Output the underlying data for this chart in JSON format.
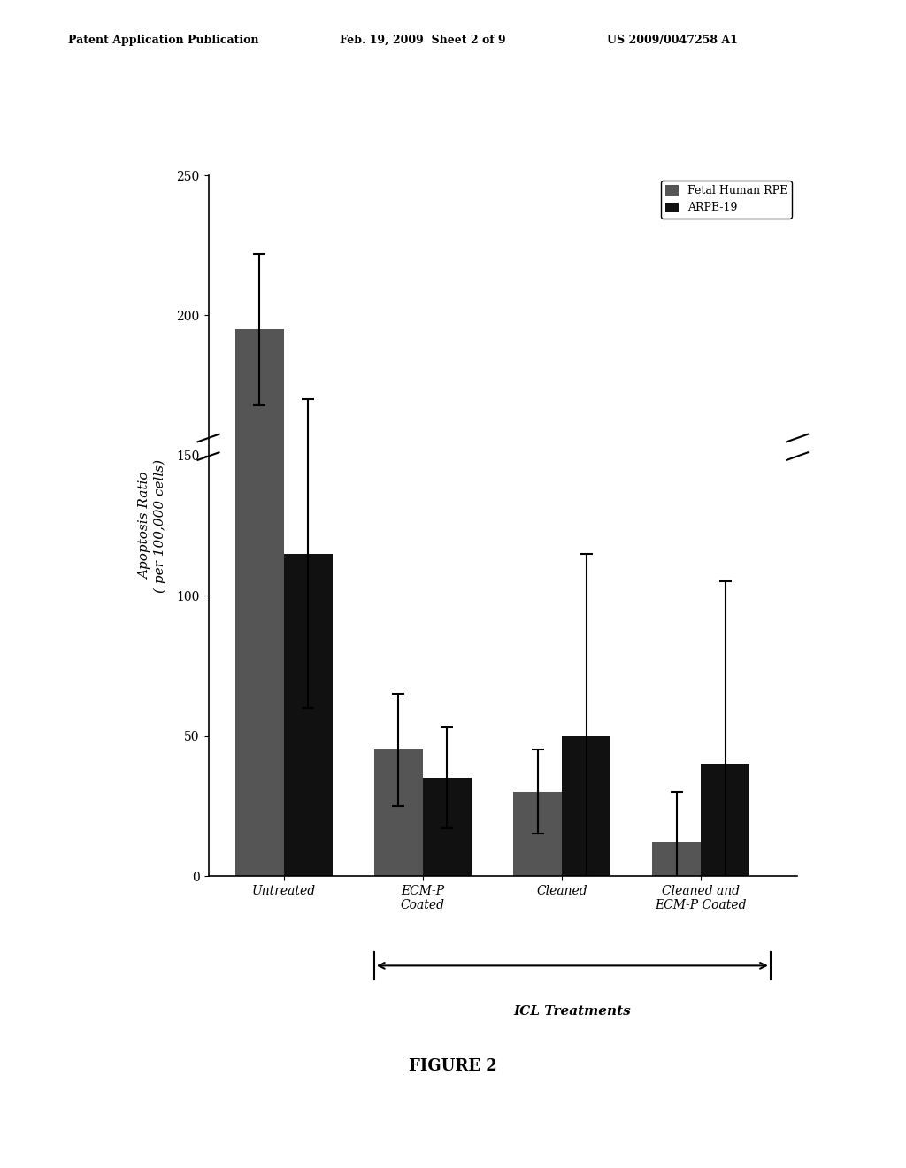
{
  "title": "",
  "ylabel": "Apoptosis Ratio\n( per 100,000 cells)",
  "xlabel": "ICL Treatments",
  "categories": [
    "Untreated",
    "ECM-P\nCoated",
    "Cleaned",
    "Cleaned and\nECM-P Coated"
  ],
  "fetal_values": [
    195,
    45,
    30,
    12
  ],
  "arpe_values": [
    115,
    35,
    50,
    40
  ],
  "fetal_errors": [
    27,
    20,
    15,
    18
  ],
  "arpe_errors": [
    55,
    18,
    65,
    65
  ],
  "ylim": [
    0,
    250
  ],
  "yticks": [
    0,
    50,
    100,
    150,
    200,
    250
  ],
  "bar_width": 0.35,
  "fetal_color": "#555555",
  "arpe_color": "#111111",
  "legend_labels": [
    "Fetal Human RPE",
    "ARPE-19"
  ],
  "header_left": "Patent Application Publication",
  "header_mid": "Feb. 19, 2009  Sheet 2 of 9",
  "header_right": "US 2009/0047258 A1",
  "figure_label": "FIGURE 2",
  "background_color": "#ffffff"
}
